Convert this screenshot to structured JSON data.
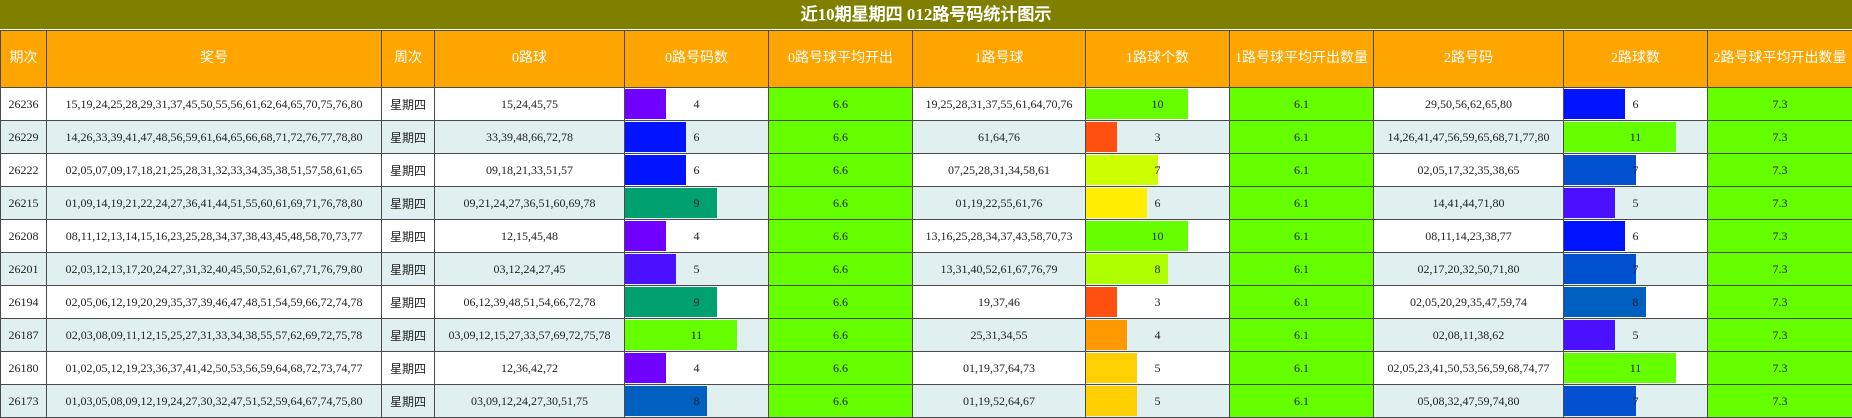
{
  "title": "近10期星期四 012路号码统计图示",
  "headers": [
    "期次",
    "奖号",
    "周次",
    "0路球",
    "0路号码数",
    "0路号球平均开出",
    "1路号球",
    "1路球个数",
    "1路号球平均开出数量",
    "2路号码",
    "2路球数",
    "2路号球平均开出数量"
  ],
  "bar_max": 14,
  "rows": [
    {
      "period": "26236",
      "numbers": "15,19,24,25,28,29,31,37,45,50,55,56,61,62,64,65,70,75,76,80",
      "week": "星期四",
      "r0_balls": "15,24,45,75",
      "r0_count": 4,
      "r0_color": "#7000ff",
      "r0_avg": "6.6",
      "r1_balls": "19,25,28,31,37,55,61,64,70,76",
      "r1_count": 10,
      "r1_color": "#66ff00",
      "r1_avg": "6.1",
      "r2_balls": "29,50,56,62,65,80",
      "r2_count": 6,
      "r2_color": "#0014ff",
      "r2_avg": "7.3"
    },
    {
      "period": "26229",
      "numbers": "14,26,33,39,41,47,48,56,59,61,64,65,66,68,71,72,76,77,78,80",
      "week": "星期四",
      "r0_balls": "33,39,48,66,72,78",
      "r0_count": 6,
      "r0_color": "#0014ff",
      "r0_avg": "6.6",
      "r1_balls": "61,64,76",
      "r1_count": 3,
      "r1_color": "#ff5010",
      "r1_avg": "6.1",
      "r2_balls": "14,26,41,47,56,59,65,68,71,77,80",
      "r2_count": 11,
      "r2_color": "#66ff00",
      "r2_avg": "7.3"
    },
    {
      "period": "26222",
      "numbers": "02,05,07,09,17,18,21,25,28,31,32,33,34,35,38,51,57,58,61,65",
      "week": "星期四",
      "r0_balls": "09,18,21,33,51,57",
      "r0_count": 6,
      "r0_color": "#0014ff",
      "r0_avg": "6.6",
      "r1_balls": "07,25,28,31,34,58,61",
      "r1_count": 7,
      "r1_color": "#ccff00",
      "r1_avg": "6.1",
      "r2_balls": "02,05,17,32,35,38,65",
      "r2_count": 7,
      "r2_color": "#0050d0",
      "r2_avg": "7.3"
    },
    {
      "period": "26215",
      "numbers": "01,09,14,19,21,22,24,27,36,41,44,51,55,60,61,69,71,76,78,80",
      "week": "星期四",
      "r0_balls": "09,21,24,27,36,51,60,69,78",
      "r0_count": 9,
      "r0_color": "#00a070",
      "r0_avg": "6.6",
      "r1_balls": "01,19,22,55,61,76",
      "r1_count": 6,
      "r1_color": "#ffee00",
      "r1_avg": "6.1",
      "r2_balls": "14,41,44,71,80",
      "r2_count": 5,
      "r2_color": "#4a10ff",
      "r2_avg": "7.3"
    },
    {
      "period": "26208",
      "numbers": "08,11,12,13,14,15,16,23,25,28,34,37,38,43,45,48,58,70,73,77",
      "week": "星期四",
      "r0_balls": "12,15,45,48",
      "r0_count": 4,
      "r0_color": "#7000ff",
      "r0_avg": "6.6",
      "r1_balls": "13,16,25,28,34,37,43,58,70,73",
      "r1_count": 10,
      "r1_color": "#66ff00",
      "r1_avg": "6.1",
      "r2_balls": "08,11,14,23,38,77",
      "r2_count": 6,
      "r2_color": "#0014ff",
      "r2_avg": "7.3"
    },
    {
      "period": "26201",
      "numbers": "02,03,12,13,17,20,24,27,31,32,40,45,50,52,61,67,71,76,79,80",
      "week": "星期四",
      "r0_balls": "03,12,24,27,45",
      "r0_count": 5,
      "r0_color": "#4a10ff",
      "r0_avg": "6.6",
      "r1_balls": "13,31,40,52,61,67,76,79",
      "r1_count": 8,
      "r1_color": "#b0ff00",
      "r1_avg": "6.1",
      "r2_balls": "02,17,20,32,50,71,80",
      "r2_count": 7,
      "r2_color": "#0050d0",
      "r2_avg": "7.3"
    },
    {
      "period": "26194",
      "numbers": "02,05,06,12,19,20,29,35,37,39,46,47,48,51,54,59,66,72,74,78",
      "week": "星期四",
      "r0_balls": "06,12,39,48,51,54,66,72,78",
      "r0_count": 9,
      "r0_color": "#00a070",
      "r0_avg": "6.6",
      "r1_balls": "19,37,46",
      "r1_count": 3,
      "r1_color": "#ff5010",
      "r1_avg": "6.1",
      "r2_balls": "02,05,20,29,35,47,59,74",
      "r2_count": 8,
      "r2_color": "#0060c0",
      "r2_avg": "7.3"
    },
    {
      "period": "26187",
      "numbers": "02,03,08,09,11,12,15,25,27,31,33,34,38,55,57,62,69,72,75,78",
      "week": "星期四",
      "r0_balls": "03,09,12,15,27,33,57,69,72,75,78",
      "r0_count": 11,
      "r0_color": "#66ff00",
      "r0_avg": "6.6",
      "r1_balls": "25,31,34,55",
      "r1_count": 4,
      "r1_color": "#ff9900",
      "r1_avg": "6.1",
      "r2_balls": "02,08,11,38,62",
      "r2_count": 5,
      "r2_color": "#4a10ff",
      "r2_avg": "7.3"
    },
    {
      "period": "26180",
      "numbers": "01,02,05,12,19,23,36,37,41,42,50,53,56,59,64,68,72,73,74,77",
      "week": "星期四",
      "r0_balls": "12,36,42,72",
      "r0_count": 4,
      "r0_color": "#7000ff",
      "r0_avg": "6.6",
      "r1_balls": "01,19,37,64,73",
      "r1_count": 5,
      "r1_color": "#ffd000",
      "r1_avg": "6.1",
      "r2_balls": "02,05,23,41,50,53,56,59,68,74,77",
      "r2_count": 11,
      "r2_color": "#66ff00",
      "r2_avg": "7.3"
    },
    {
      "period": "26173",
      "numbers": "01,03,05,08,09,12,19,24,27,30,32,47,51,52,59,64,67,74,75,80",
      "week": "星期四",
      "r0_balls": "03,09,12,24,27,30,51,75",
      "r0_count": 8,
      "r0_color": "#0060c0",
      "r0_avg": "6.6",
      "r1_balls": "01,19,52,64,67",
      "r1_count": 5,
      "r1_color": "#ffd000",
      "r1_avg": "6.1",
      "r2_balls": "05,08,32,47,59,74,80",
      "r2_count": 7,
      "r2_color": "#0050d0",
      "r2_avg": "7.3"
    }
  ]
}
